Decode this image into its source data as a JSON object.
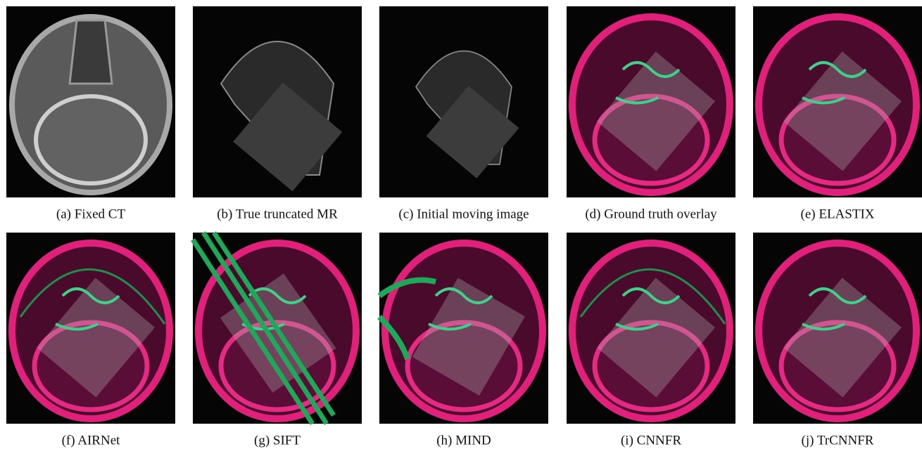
{
  "panels": [
    {
      "caption": "(a) Fixed CT"
    },
    {
      "caption": "(b) True truncated MR"
    },
    {
      "caption": "(c) Initial moving image"
    },
    {
      "caption": "(d) Ground truth overlay"
    },
    {
      "caption": "(e) ELASTIX"
    },
    {
      "caption": "(f) AIRNet"
    },
    {
      "caption": "(g) SIFT"
    },
    {
      "caption": "(h) MIND"
    },
    {
      "caption": "(i) CNNFR"
    },
    {
      "caption": "(j) TrCNNFR"
    }
  ]
}
